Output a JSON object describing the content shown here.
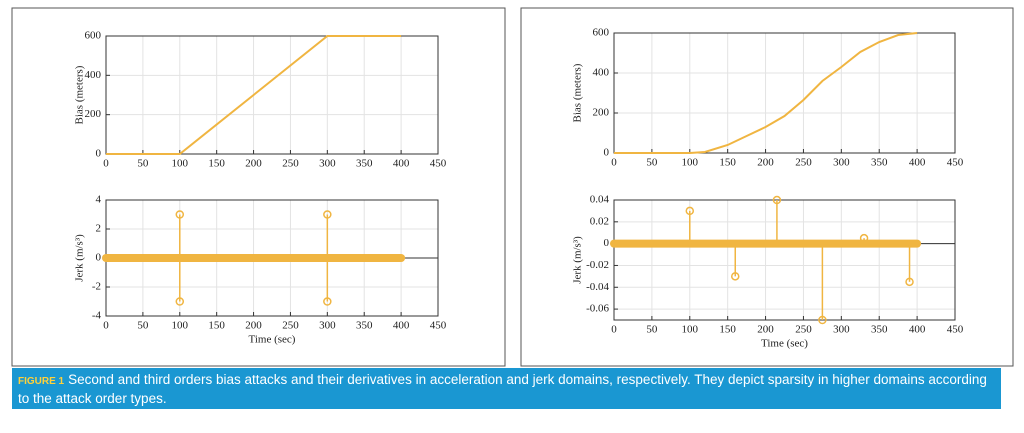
{
  "chart_data": [
    {
      "type": "line",
      "ylabel": "Bias (meters)",
      "x": [
        0,
        100,
        300,
        400
      ],
      "values": [
        0,
        0,
        600,
        600
      ],
      "color": "#f0b541",
      "xlim": [
        0,
        450
      ],
      "xticks": [
        0,
        50,
        100,
        150,
        200,
        250,
        300,
        350,
        400,
        450
      ],
      "ylim": [
        0,
        600
      ],
      "yticks": [
        0,
        200,
        400,
        600
      ],
      "grid": true
    },
    {
      "type": "stem",
      "ylabel": "Jerk (m/s³)",
      "xlabel": "Time (sec)",
      "color": "#f0b541",
      "series": [
        {
          "x": [
            100,
            100,
            300,
            300
          ],
          "values": [
            3,
            -3,
            3,
            -3
          ]
        },
        {
          "x": [
            0,
            400
          ],
          "values": [
            0,
            0
          ]
        }
      ],
      "xlim": [
        0,
        450
      ],
      "xticks": [
        0,
        50,
        100,
        150,
        200,
        250,
        300,
        350,
        400,
        450
      ],
      "ylim": [
        -4,
        4
      ],
      "yticks": [
        -4,
        -2,
        0,
        2,
        4
      ],
      "grid": true
    },
    {
      "type": "line",
      "ylabel": "Bias (meters)",
      "x": [
        0,
        100,
        120,
        150,
        175,
        200,
        225,
        250,
        275,
        300,
        325,
        350,
        375,
        400
      ],
      "values": [
        0,
        0,
        5,
        40,
        85,
        130,
        185,
        265,
        360,
        430,
        505,
        555,
        590,
        600
      ],
      "color": "#f0b541",
      "xlim": [
        0,
        450
      ],
      "xticks": [
        0,
        50,
        100,
        150,
        200,
        250,
        300,
        350,
        400,
        450
      ],
      "ylim": [
        0,
        600
      ],
      "yticks": [
        0,
        200,
        400,
        600
      ],
      "grid": true
    },
    {
      "type": "stem",
      "ylabel": "Jerk (m/s³)",
      "xlabel": "Time (sec)",
      "color": "#f0b541",
      "series": [
        {
          "x": [
            100,
            160,
            215,
            275,
            330,
            390
          ],
          "values": [
            0.03,
            -0.03,
            0.04,
            -0.07,
            0.005,
            -0.035
          ]
        },
        {
          "x": [
            0,
            400
          ],
          "values": [
            0,
            0
          ]
        }
      ],
      "xlim": [
        0,
        450
      ],
      "xticks": [
        0,
        50,
        100,
        150,
        200,
        250,
        300,
        350,
        400,
        450
      ],
      "ylim": [
        -0.07,
        0.04
      ],
      "yticks": [
        -0.06,
        -0.04,
        -0.02,
        0,
        0.02,
        0.04
      ],
      "grid": true
    }
  ],
  "caption": {
    "label": "FIGURE 1",
    "text": "Second and third orders bias attacks and their derivatives in acceleration and jerk domains, respectively. They depict sparsity in higher domains according to the attack order types."
  }
}
